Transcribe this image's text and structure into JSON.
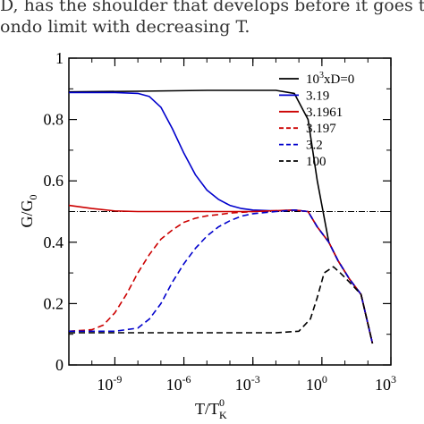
{
  "caption": {
    "line1": "D, has the shoulder that develops before it goes to",
    "line2": "ondo limit with decreasing T."
  },
  "chart_data": {
    "type": "line",
    "xlabel": "T/T",
    "xlabel_sup": "0",
    "xlabel_sub": "K",
    "ylabel": "G/G",
    "ylabel_sub": "0",
    "xscale": "log",
    "xlim_log10": [
      -11,
      3
    ],
    "ylim": [
      0,
      1
    ],
    "xticks": [
      {
        "exp": -9,
        "label_base": "10",
        "label_exp": "-9"
      },
      {
        "exp": -6,
        "label_base": "10",
        "label_exp": "-6"
      },
      {
        "exp": -3,
        "label_base": "10",
        "label_exp": "-3"
      },
      {
        "exp": 0,
        "label_base": "10",
        "label_exp": "0"
      },
      {
        "exp": 3,
        "label_base": "10",
        "label_exp": "3"
      }
    ],
    "yticks": [
      {
        "value": 0,
        "label": "0"
      },
      {
        "value": 0.2,
        "label": "0.2"
      },
      {
        "value": 0.4,
        "label": "0.4"
      },
      {
        "value": 0.6,
        "label": "0.6"
      },
      {
        "value": 0.8,
        "label": "0.8"
      },
      {
        "value": 1,
        "label": "1"
      }
    ],
    "reference_line": {
      "y": 0.5,
      "style": "dash-dot",
      "color": "#000000"
    },
    "legend": {
      "position": "top-right",
      "header_base": "10",
      "header_exp": "3",
      "header_rest": "xD=0"
    },
    "series": [
      {
        "name": "10^3xD=0",
        "legend_label": "",
        "color": "#000000",
        "dash": "solid",
        "x": [
          -11,
          -8,
          -5,
          -2,
          -1.2,
          -0.6,
          -0.2,
          0.3,
          0.7,
          1.2,
          1.7,
          2.2
        ],
        "y": [
          0.89,
          0.892,
          0.895,
          0.895,
          0.885,
          0.8,
          0.6,
          0.4,
          0.34,
          0.28,
          0.23,
          0.07
        ]
      },
      {
        "name": "3.19",
        "legend_label": "3.19",
        "color": "#0000cc",
        "dash": "solid",
        "x": [
          -11,
          -9,
          -8,
          -7.5,
          -7,
          -6.5,
          -6,
          -5.5,
          -5,
          -4.5,
          -4,
          -3.5,
          -3,
          -2,
          -1.2,
          -0.6,
          -0.2,
          0.3,
          0.7,
          1.2,
          1.7,
          2.2
        ],
        "y": [
          0.888,
          0.888,
          0.885,
          0.875,
          0.84,
          0.77,
          0.69,
          0.62,
          0.57,
          0.54,
          0.52,
          0.51,
          0.505,
          0.502,
          0.505,
          0.5,
          0.45,
          0.4,
          0.34,
          0.28,
          0.23,
          0.07
        ]
      },
      {
        "name": "3.1961",
        "legend_label": "3.1961",
        "color": "#cc0000",
        "dash": "solid",
        "x": [
          -11,
          -10,
          -9,
          -8,
          -6,
          -3,
          -1.2,
          -0.6,
          -0.2,
          0.3,
          0.7,
          1.2,
          1.7,
          2.2
        ],
        "y": [
          0.52,
          0.51,
          0.502,
          0.5,
          0.5,
          0.5,
          0.505,
          0.5,
          0.45,
          0.4,
          0.34,
          0.28,
          0.23,
          0.07
        ]
      },
      {
        "name": "3.197",
        "legend_label": "3.197",
        "color": "#cc0000",
        "dash": "dashed",
        "x": [
          -11,
          -10,
          -9.5,
          -9,
          -8.5,
          -8,
          -7.5,
          -7,
          -6.5,
          -6,
          -5.5,
          -5,
          -4.5,
          -4,
          -3,
          -2,
          -1.2,
          -0.6,
          -0.2,
          0.3,
          0.7,
          1.2,
          1.7,
          2.2
        ],
        "y": [
          0.11,
          0.115,
          0.13,
          0.17,
          0.23,
          0.3,
          0.36,
          0.41,
          0.44,
          0.465,
          0.478,
          0.486,
          0.49,
          0.495,
          0.5,
          0.503,
          0.505,
          0.5,
          0.45,
          0.4,
          0.34,
          0.28,
          0.23,
          0.07
        ]
      },
      {
        "name": "3.2",
        "legend_label": "3.2",
        "color": "#0000cc",
        "dash": "dashed",
        "x": [
          -11,
          -9,
          -8,
          -7.5,
          -7,
          -6.5,
          -6,
          -5.5,
          -5,
          -4.5,
          -4,
          -3.5,
          -3,
          -2,
          -1.2,
          -0.6,
          -0.2,
          0.3,
          0.7,
          1.2,
          1.7,
          2.2
        ],
        "y": [
          0.11,
          0.11,
          0.12,
          0.15,
          0.2,
          0.27,
          0.33,
          0.38,
          0.42,
          0.45,
          0.47,
          0.485,
          0.493,
          0.5,
          0.505,
          0.5,
          0.45,
          0.4,
          0.34,
          0.28,
          0.23,
          0.07
        ]
      },
      {
        "name": "100",
        "legend_label": "100",
        "color": "#000000",
        "dash": "dashed",
        "x": [
          -11,
          -8,
          -5,
          -2,
          -1,
          -0.5,
          -0.2,
          0.1,
          0.5,
          0.8,
          1.2,
          1.7,
          2.2
        ],
        "y": [
          0.105,
          0.105,
          0.105,
          0.105,
          0.11,
          0.15,
          0.22,
          0.3,
          0.32,
          0.3,
          0.27,
          0.23,
          0.07
        ]
      }
    ]
  }
}
